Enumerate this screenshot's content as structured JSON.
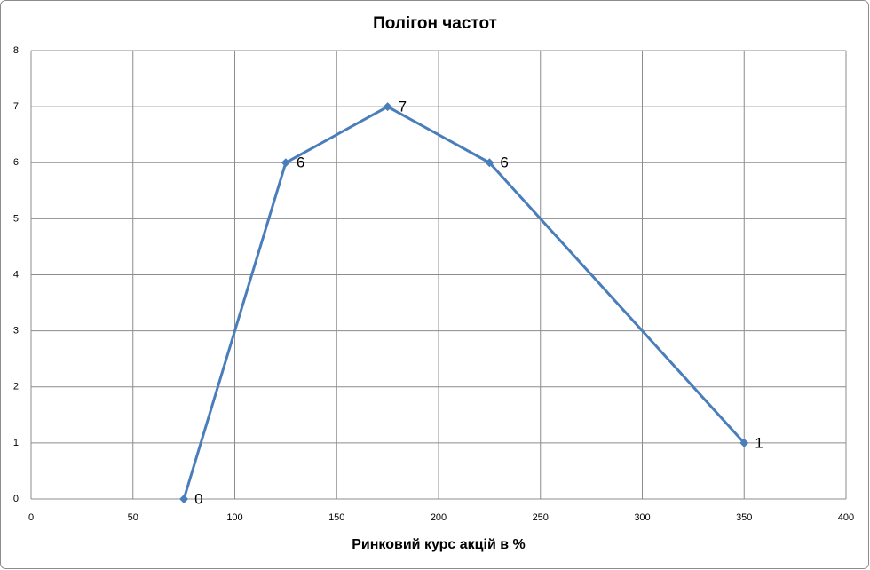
{
  "chart_data": {
    "type": "line",
    "title": "Полігон частот",
    "x_label": "Ринковий курс акцій в %",
    "x": [
      75,
      125,
      175,
      225,
      350
    ],
    "values": [
      0,
      6,
      7,
      6,
      1
    ],
    "color": "#4a7ebb",
    "xlim": [
      0,
      400
    ],
    "xticks": [
      0,
      50,
      100,
      150,
      200,
      250,
      300,
      350,
      400
    ],
    "ylim": [
      0,
      8
    ],
    "yticks": [
      0,
      1,
      2,
      3,
      4,
      5,
      6,
      7,
      8
    ],
    "grid": true,
    "data_labels": true
  }
}
